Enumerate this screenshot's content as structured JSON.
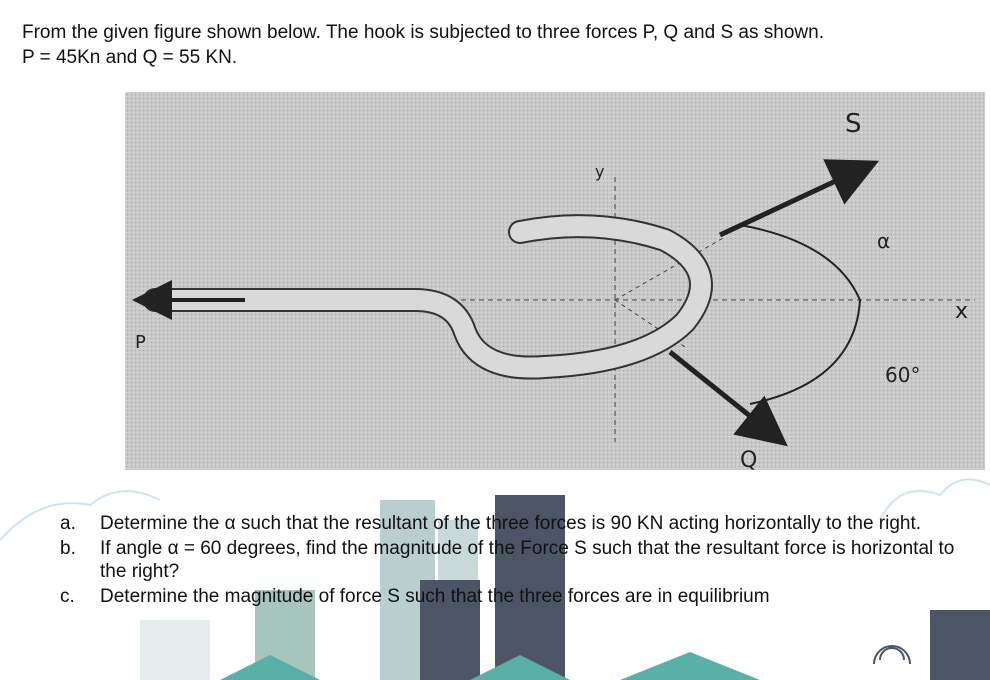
{
  "intro": [
    "From the given figure shown below. The hook is subjected to three forces P, Q and S as shown.",
    "P = 45Kn and Q = 55 KN."
  ],
  "figure": {
    "labels": {
      "s": "S",
      "y": "y",
      "alpha": "α",
      "x": "x",
      "p": "P",
      "angle": "60°",
      "q": "Q"
    }
  },
  "questions": [
    {
      "marker": "a.",
      "text": "Determine the α such that the resultant of the three forces is 90 KN acting horizontally to the right."
    },
    {
      "marker": "b.",
      "text": "If angle α = 60 degrees, find the magnitude of the Force S such that the resultant force is horizontal to the right?"
    },
    {
      "marker": "c.",
      "text": "Determine the magnitude of force S such that the three forces are in equilibrium"
    }
  ]
}
